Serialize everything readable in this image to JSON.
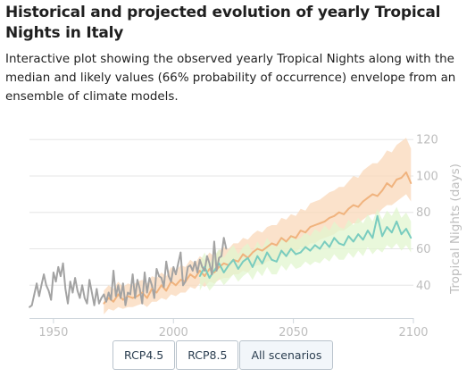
{
  "title": "Historical and projected evolution of yearly Tropical Nights in Italy",
  "subtitle": "Interactive plot showing the observed yearly Tropical Nights along with the median and likely values (66% probability of occurrence) envelope from an ensemble of climate models.",
  "colors": {
    "observed": "#a3a3a3",
    "rcp45": "#79ccbf",
    "rcp45_band": "#e2f5cf",
    "rcp85": "#f0b37e",
    "rcp85_band": "#fad8b9",
    "grid": "#e6e6e6",
    "axis_text": "#bdbdbd"
  },
  "buttons": [
    {
      "label": "RCP4.5"
    },
    {
      "label": "RCP8.5"
    },
    {
      "label": "All scenarios"
    }
  ],
  "selected_button": "All scenarios",
  "chart_data": {
    "type": "line",
    "ylabel": "Tropical Nights (days)",
    "y_axis_position": "right",
    "xlim": [
      1940,
      2100
    ],
    "ylim": [
      22,
      125
    ],
    "x_ticks": [
      1950,
      2000,
      2050,
      2100
    ],
    "y_ticks": [
      40,
      60,
      80,
      100,
      120
    ],
    "grid": "horizontal",
    "legend": "none",
    "series": [
      {
        "key": "observed",
        "x": [
          1940,
          1941,
          1942,
          1943,
          1944,
          1945,
          1946,
          1947,
          1948,
          1949,
          1950,
          1951,
          1952,
          1953,
          1954,
          1955,
          1956,
          1957,
          1958,
          1959,
          1960,
          1961,
          1962,
          1963,
          1964,
          1965,
          1966,
          1967,
          1968,
          1969,
          1970,
          1971,
          1972,
          1973,
          1974,
          1975,
          1976,
          1977,
          1978,
          1979,
          1980,
          1981,
          1982,
          1983,
          1984,
          1985,
          1986,
          1987,
          1988,
          1989,
          1990,
          1991,
          1992,
          1993,
          1994,
          1995,
          1996,
          1997,
          1998,
          1999,
          2000,
          2001,
          2002,
          2003,
          2004,
          2005,
          2006,
          2007,
          2008,
          2009,
          2010,
          2011,
          2012,
          2013,
          2014,
          2015,
          2016,
          2017,
          2018,
          2019,
          2020,
          2021,
          2022
        ],
        "values": [
          28,
          29,
          35,
          41,
          34,
          40,
          46,
          40,
          37,
          32,
          47,
          42,
          50,
          45,
          52,
          38,
          30,
          42,
          36,
          44,
          37,
          33,
          40,
          33,
          30,
          43,
          36,
          29,
          38,
          30,
          33,
          35,
          31,
          36,
          32,
          48,
          34,
          40,
          33,
          41,
          29,
          36,
          35,
          46,
          33,
          43,
          38,
          30,
          47,
          36,
          44,
          40,
          33,
          49,
          45,
          44,
          39,
          53,
          45,
          42,
          50,
          46,
          52,
          58,
          40,
          42,
          50,
          51,
          48,
          53,
          47,
          54,
          50,
          48,
          56,
          52,
          46,
          64,
          48,
          55,
          56,
          66,
          60
        ]
      },
      {
        "key": "rcp85",
        "x": [
          1971,
          1973,
          1975,
          1977,
          1979,
          1981,
          1983,
          1985,
          1987,
          1989,
          1991,
          1993,
          1995,
          1997,
          1999,
          2001,
          2003,
          2005,
          2007,
          2009,
          2011,
          2013,
          2015,
          2017,
          2019,
          2021,
          2023,
          2025,
          2027,
          2029,
          2031,
          2033,
          2035,
          2037,
          2039,
          2041,
          2043,
          2045,
          2047,
          2049,
          2051,
          2053,
          2055,
          2057,
          2059,
          2061,
          2063,
          2065,
          2067,
          2069,
          2071,
          2073,
          2075,
          2077,
          2079,
          2081,
          2083,
          2085,
          2087,
          2089,
          2091,
          2093,
          2095,
          2097,
          2099
        ],
        "values": [
          30,
          33,
          31,
          35,
          32,
          34,
          33,
          34,
          36,
          33,
          38,
          36,
          40,
          37,
          42,
          40,
          43,
          42,
          46,
          44,
          48,
          45,
          49,
          47,
          50,
          52,
          51,
          54,
          53,
          57,
          55,
          58,
          60,
          59,
          61,
          63,
          62,
          66,
          64,
          67,
          66,
          70,
          69,
          72,
          73,
          74,
          75,
          77,
          78,
          80,
          79,
          82,
          84,
          83,
          86,
          88,
          90,
          89,
          92,
          96,
          94,
          98,
          99,
          102,
          96
        ],
        "lower": [
          24,
          27,
          26,
          28,
          27,
          28,
          28,
          29,
          30,
          28,
          31,
          31,
          33,
          32,
          35,
          34,
          36,
          36,
          39,
          38,
          41,
          39,
          42,
          41,
          43,
          44,
          44,
          46,
          46,
          48,
          47,
          50,
          51,
          51,
          53,
          54,
          54,
          57,
          56,
          58,
          58,
          61,
          60,
          63,
          63,
          65,
          66,
          67,
          68,
          70,
          70,
          72,
          74,
          74,
          76,
          78,
          79,
          79,
          82,
          84,
          84,
          86,
          88,
          90,
          86
        ],
        "upper": [
          37,
          40,
          38,
          42,
          39,
          41,
          40,
          42,
          43,
          41,
          45,
          44,
          47,
          45,
          50,
          48,
          51,
          50,
          54,
          52,
          56,
          54,
          58,
          56,
          59,
          61,
          60,
          63,
          63,
          66,
          65,
          68,
          70,
          69,
          72,
          73,
          73,
          77,
          76,
          79,
          78,
          82,
          81,
          85,
          86,
          87,
          89,
          91,
          92,
          94,
          94,
          97,
          100,
          99,
          103,
          105,
          107,
          107,
          110,
          114,
          113,
          117,
          119,
          121,
          115
        ]
      },
      {
        "key": "rcp45",
        "x": [
          2011,
          2013,
          2015,
          2017,
          2019,
          2021,
          2023,
          2025,
          2027,
          2029,
          2031,
          2033,
          2035,
          2037,
          2039,
          2041,
          2043,
          2045,
          2047,
          2049,
          2051,
          2053,
          2055,
          2057,
          2059,
          2061,
          2063,
          2065,
          2067,
          2069,
          2071,
          2073,
          2075,
          2077,
          2079,
          2081,
          2083,
          2085,
          2087,
          2089,
          2091,
          2093,
          2095,
          2097,
          2099
        ],
        "values": [
          45,
          50,
          44,
          48,
          52,
          47,
          51,
          54,
          49,
          53,
          55,
          50,
          56,
          52,
          58,
          54,
          53,
          59,
          56,
          60,
          57,
          58,
          61,
          59,
          62,
          60,
          64,
          61,
          66,
          63,
          62,
          67,
          64,
          68,
          65,
          70,
          66,
          78,
          67,
          72,
          69,
          75,
          68,
          71,
          66
        ],
        "lower": [
          37,
          42,
          37,
          40,
          44,
          40,
          43,
          46,
          42,
          45,
          47,
          43,
          48,
          45,
          50,
          46,
          46,
          51,
          48,
          52,
          49,
          50,
          53,
          51,
          53,
          52,
          55,
          53,
          57,
          54,
          54,
          58,
          55,
          59,
          56,
          61,
          57,
          60,
          58,
          62,
          60,
          63,
          59,
          62,
          58
        ],
        "upper": [
          53,
          58,
          52,
          56,
          60,
          55,
          59,
          62,
          57,
          61,
          63,
          58,
          64,
          60,
          66,
          62,
          61,
          67,
          64,
          68,
          65,
          66,
          69,
          67,
          71,
          69,
          73,
          70,
          75,
          72,
          71,
          76,
          73,
          77,
          74,
          79,
          75,
          82,
          76,
          81,
          78,
          83,
          77,
          80,
          75
        ]
      }
    ]
  }
}
